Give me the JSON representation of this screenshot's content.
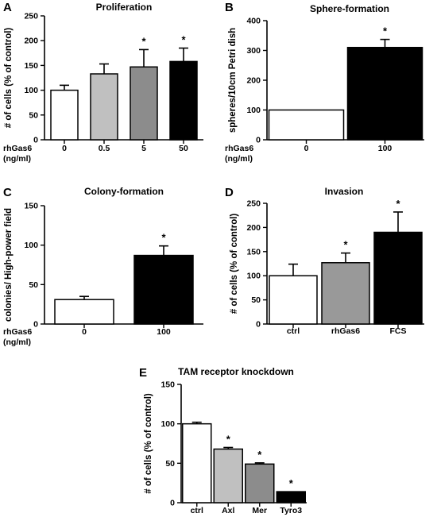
{
  "chart_data": [
    {
      "type": "bar",
      "panel": "A",
      "title": "Proliferation",
      "ylabel": "# of cells (% of control)",
      "ylim": [
        0,
        250
      ],
      "yticks": [
        "0",
        "50",
        "100",
        "150",
        "200",
        "250"
      ],
      "row_label_lines": [
        "rhGas6",
        "(ng/ml)"
      ],
      "categories": [
        "0",
        "0.5",
        "5",
        "50"
      ],
      "values": [
        100,
        133,
        147,
        158
      ],
      "errors": [
        10,
        20,
        35,
        27
      ],
      "significant": [
        "",
        "",
        "*",
        "*"
      ],
      "colors": [
        "#ffffff",
        "#c0c0c0",
        "#8c8c8c",
        "#000000"
      ]
    },
    {
      "type": "bar",
      "panel": "B",
      "title": "Sphere-formation",
      "ylabel": "spheres/10cm Petri dish",
      "ylim": [
        0,
        400
      ],
      "yticks": [
        "0",
        "100",
        "200",
        "300",
        "400"
      ],
      "row_label_lines": [
        "rhGas6",
        "(ng/ml)"
      ],
      "categories": [
        "0",
        "100"
      ],
      "values": [
        100,
        310
      ],
      "errors": [
        0,
        27
      ],
      "significant": [
        "",
        "*"
      ],
      "colors": [
        "#ffffff",
        "#000000"
      ]
    },
    {
      "type": "bar",
      "panel": "C",
      "title": "Colony-formation",
      "ylabel": "colonies/ High-power field",
      "ylim": [
        0,
        150
      ],
      "yticks": [
        "0",
        "50",
        "100",
        "150"
      ],
      "row_label_lines": [
        "rhGas6",
        "(ng/ml)"
      ],
      "categories": [
        "0",
        "100"
      ],
      "values": [
        31,
        87
      ],
      "errors": [
        4,
        12
      ],
      "significant": [
        "",
        "*"
      ],
      "colors": [
        "#ffffff",
        "#000000"
      ]
    },
    {
      "type": "bar",
      "panel": "D",
      "title": "Invasion",
      "ylabel": "# of cells (% of control)",
      "ylim": [
        0,
        250
      ],
      "yticks": [
        "0",
        "50",
        "100",
        "150",
        "200",
        "250"
      ],
      "row_label_lines": [],
      "categories": [
        "ctrl",
        "rhGas6",
        "FCS"
      ],
      "values": [
        100,
        127,
        190
      ],
      "errors": [
        24,
        20,
        42
      ],
      "significant": [
        "",
        "*",
        "*"
      ],
      "colors": [
        "#ffffff",
        "#999999",
        "#000000"
      ]
    },
    {
      "type": "bar",
      "panel": "E",
      "title": "TAM receptor knockdown",
      "ylabel": "# of cells (% of control)",
      "ylim": [
        0,
        150
      ],
      "yticks": [
        "0",
        "50",
        "100",
        "150"
      ],
      "row_label_lines": [],
      "categories": [
        "ctrl",
        "Axl",
        "Mer",
        "Tyro3"
      ],
      "values": [
        100,
        68,
        49,
        14
      ],
      "errors": [
        2,
        2,
        1.5,
        0
      ],
      "significant": [
        "",
        "*",
        "*",
        "*"
      ],
      "colors": [
        "#ffffff",
        "#c0c0c0",
        "#8c8c8c",
        "#000000"
      ]
    }
  ]
}
